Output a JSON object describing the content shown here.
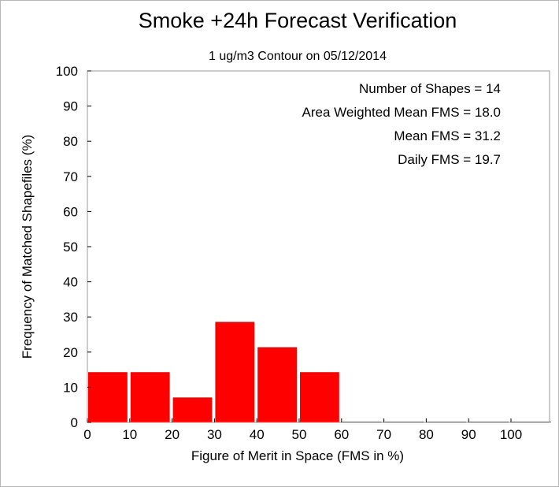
{
  "chart_data": {
    "type": "bar",
    "title": "Smoke +24h Forecast Verification",
    "subtitle": "1 ug/m3 Contour on 05/12/2014",
    "xlabel": "Figure of Merit in Space (FMS in %)",
    "ylabel": "Frequency of Matched Shapefiles (%)",
    "xlim": [
      0,
      100
    ],
    "ylim": [
      0,
      100
    ],
    "xticks": [
      0,
      10,
      20,
      30,
      40,
      50,
      60,
      70,
      80,
      90,
      100
    ],
    "yticks": [
      0,
      10,
      20,
      30,
      40,
      50,
      60,
      70,
      80,
      90,
      100
    ],
    "bins": [
      {
        "start": 0,
        "end": 10,
        "value": 14.3
      },
      {
        "start": 10,
        "end": 20,
        "value": 14.3
      },
      {
        "start": 20,
        "end": 30,
        "value": 7.1
      },
      {
        "start": 30,
        "end": 40,
        "value": 28.6
      },
      {
        "start": 40,
        "end": 50,
        "value": 21.4
      },
      {
        "start": 50,
        "end": 60,
        "value": 14.3
      },
      {
        "start": 60,
        "end": 70,
        "value": 0
      },
      {
        "start": 70,
        "end": 80,
        "value": 0
      },
      {
        "start": 80,
        "end": 90,
        "value": 0
      },
      {
        "start": 90,
        "end": 100,
        "value": 0
      },
      {
        "start": 100,
        "end": 110,
        "value": 0
      }
    ],
    "bar_color": "#ff0000",
    "stats": [
      "Number of Shapes = 14",
      "Area Weighted Mean FMS = 18.0",
      "Mean FMS = 31.2",
      "Daily FMS = 19.7"
    ],
    "grid": false
  }
}
